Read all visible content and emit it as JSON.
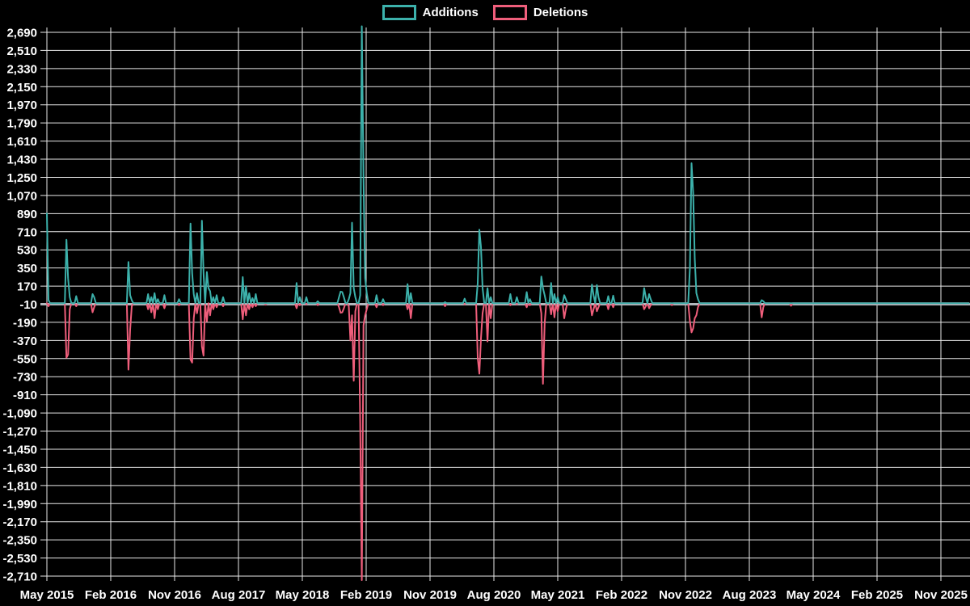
{
  "page": {
    "background": "#000000"
  },
  "legend": {
    "items": [
      {
        "label": "Additions",
        "color": "#3CB1AB"
      },
      {
        "label": "Deletions",
        "color": "#EF5E7B"
      }
    ]
  },
  "chart_data": {
    "type": "line",
    "title": "",
    "xlabel": "",
    "ylabel": "",
    "x_tick_labels": [
      "May 2015",
      "Feb 2016",
      "Nov 2016",
      "Aug 2017",
      "May 2018",
      "Feb 2019",
      "Nov 2019",
      "Aug 2020",
      "May 2021",
      "Feb 2022",
      "Nov 2022",
      "Aug 2023",
      "May 2024",
      "Feb 2025",
      "Nov 2025"
    ],
    "y_ticks": [
      2690,
      2510,
      2330,
      2150,
      1970,
      1790,
      1610,
      1430,
      1250,
      1070,
      890,
      710,
      530,
      350,
      170,
      -10,
      -190,
      -370,
      -550,
      -730,
      -910,
      -1090,
      -1270,
      -1450,
      -1630,
      -1810,
      -1990,
      -2170,
      -2350,
      -2530,
      -2710
    ],
    "y_max": 2690,
    "y_min": -2710,
    "y_step": 180,
    "zero_line_value": -10,
    "grid": true,
    "legend_position": "top",
    "background": "#000000",
    "grid_color": "#e8e8e8",
    "zero_line_color": "#b2b8bd",
    "x_unit": "week",
    "weeks_total": 566,
    "weeks_per_x_tick": 39.13,
    "series": [
      {
        "name": "Deletions",
        "color": "#EF5E7B",
        "baseline": 0,
        "sparse_points": {
          "1": -30,
          "12": -540,
          "13": -510,
          "14": -60,
          "18": -30,
          "28": -90,
          "29": -40,
          "50": -660,
          "51": -260,
          "52": -30,
          "62": -60,
          "64": -90,
          "66": -150,
          "68": -60,
          "72": -50,
          "81": -20,
          "88": -560,
          "89": -590,
          "90": -150,
          "92": -100,
          "95": -430,
          "96": -520,
          "98": -180,
          "100": -120,
          "102": -60,
          "104": -40,
          "108": -30,
          "120": -160,
          "122": -120,
          "124": -60,
          "126": -40,
          "128": -30,
          "134": -15,
          "153": -50,
          "155": -20,
          "159": -10,
          "166": -20,
          "179": -40,
          "180": -95,
          "181": -90,
          "182": -50,
          "185": -30,
          "186": -370,
          "187": -120,
          "188": -770,
          "189": -80,
          "192": -1180,
          "193": -2750,
          "194": -220,
          "195": -120,
          "196": -60,
          "202": -40,
          "206": -20,
          "221": -60,
          "223": -150,
          "244": -30,
          "256": -10,
          "264": -540,
          "265": -700,
          "266": -350,
          "267": -100,
          "270": -380,
          "272": -150,
          "284": -20,
          "288": -10,
          "294": -40,
          "296": -20,
          "303": -100,
          "304": -800,
          "305": -200,
          "309": -110,
          "311": -140,
          "313": -80,
          "317": -150,
          "318": -60,
          "334": -120,
          "335": -60,
          "337": -80,
          "338": -40,
          "344": -60,
          "347": -40,
          "366": -60,
          "367": -30,
          "369": -50,
          "370": -20,
          "383": -20,
          "394": -180,
          "395": -290,
          "396": -250,
          "397": -150,
          "398": -120,
          "399": -40,
          "438": -140,
          "439": -40,
          "456": -25
        }
      },
      {
        "name": "Additions",
        "color": "#3CB1AB",
        "baseline": 0,
        "sparse_points": {
          "0": 890,
          "1": 30,
          "12": 630,
          "13": 250,
          "14": 60,
          "18": 70,
          "28": 90,
          "29": 60,
          "50": 410,
          "51": 80,
          "52": 30,
          "62": 90,
          "64": 60,
          "66": 100,
          "68": 40,
          "72": 80,
          "81": 40,
          "88": 790,
          "89": 300,
          "90": 90,
          "92": 100,
          "95": 820,
          "96": 300,
          "98": 310,
          "99": 150,
          "100": 120,
          "102": 60,
          "104": 80,
          "108": 60,
          "120": 260,
          "122": 170,
          "124": 100,
          "126": 50,
          "128": 90,
          "153": 200,
          "155": 60,
          "159": 60,
          "166": 20,
          "179": 60,
          "180": 115,
          "181": 110,
          "182": 60,
          "185": 40,
          "186": 100,
          "187": 800,
          "188": 150,
          "189": 60,
          "192": 80,
          "193": 2750,
          "194": 1250,
          "195": 250,
          "196": 100,
          "202": 80,
          "206": 40,
          "221": 190,
          "223": 100,
          "244": 10,
          "256": 45,
          "264": 200,
          "265": 730,
          "266": 560,
          "267": 150,
          "270": 150,
          "272": 60,
          "284": 90,
          "288": 60,
          "294": 110,
          "296": 40,
          "303": 265,
          "304": 150,
          "305": 80,
          "309": 200,
          "311": 90,
          "313": 60,
          "317": 80,
          "318": 40,
          "334": 185,
          "335": 80,
          "337": 180,
          "338": 60,
          "344": 70,
          "347": 75,
          "366": 150,
          "367": 60,
          "369": 90,
          "370": 40,
          "394": 350,
          "395": 1390,
          "396": 1100,
          "397": 440,
          "398": 100,
          "399": 40,
          "438": 30,
          "439": 20
        }
      }
    ]
  }
}
